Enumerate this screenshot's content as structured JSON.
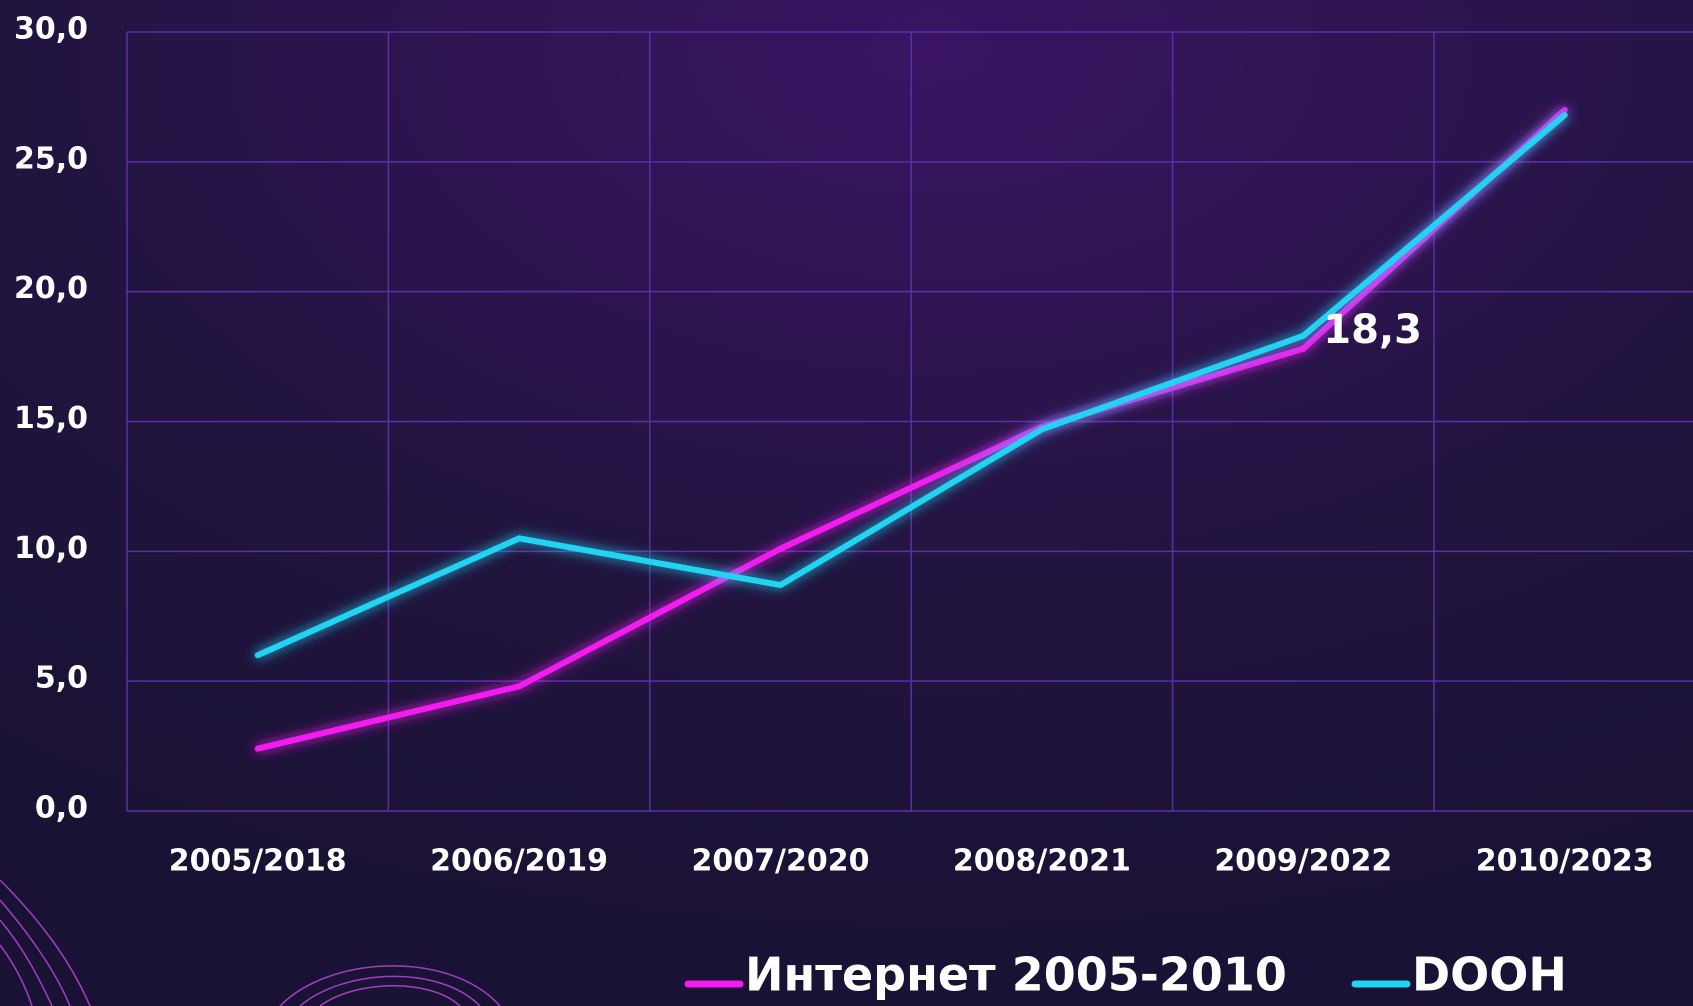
{
  "chart_data": {
    "type": "line",
    "categories": [
      "2005/2018",
      "2006/2019",
      "2007/2020",
      "2008/2021",
      "2009/2022",
      "2010/2023"
    ],
    "series": [
      {
        "name": "Интернет 2005-2010",
        "color": "#f21cf0",
        "values": [
          2.4,
          4.8,
          10.1,
          14.8,
          17.8,
          27.0
        ]
      },
      {
        "name": "DOOH",
        "color": "#22d3f2",
        "values": [
          6.0,
          10.5,
          8.7,
          14.7,
          18.3,
          26.8
        ],
        "value_labels": [
          null,
          null,
          null,
          null,
          "18,3",
          null
        ]
      }
    ],
    "ylim": [
      0,
      30
    ],
    "yticks": [
      {
        "value": 0,
        "label": "0,0"
      },
      {
        "value": 5,
        "label": "5,0"
      },
      {
        "value": 10,
        "label": "10,0"
      },
      {
        "value": 15,
        "label": "15,0"
      },
      {
        "value": 20,
        "label": "20,0"
      },
      {
        "value": 25,
        "label": "25,0"
      },
      {
        "value": 30,
        "label": "30,0"
      }
    ],
    "grid": true
  }
}
